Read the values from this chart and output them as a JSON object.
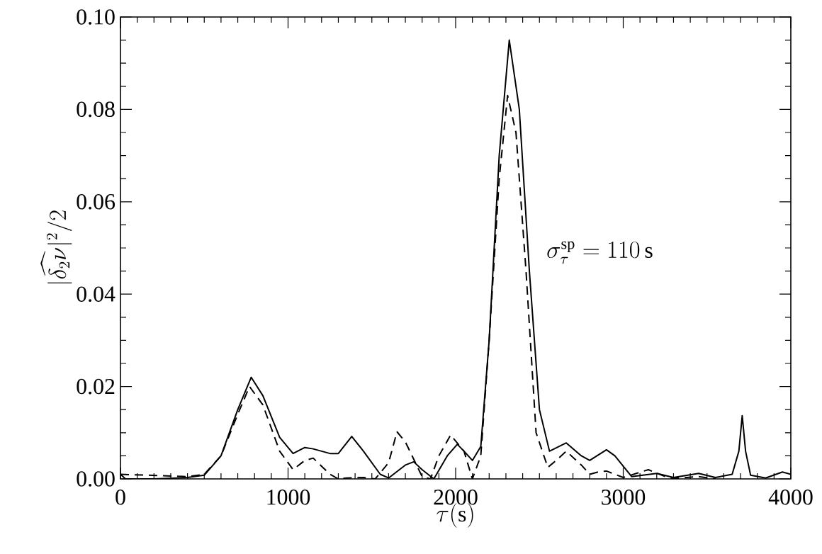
{
  "chart_data": {
    "type": "line",
    "xlabel": "\\tau(\\mathrm{s})",
    "ylabel": "|\\widehat{\\delta_2\\nu}|^2/2",
    "xlim": [
      0,
      4000
    ],
    "ylim": [
      0,
      0.1
    ],
    "xticks": [
      0,
      1000,
      2000,
      3000,
      4000
    ],
    "yticks": [
      {
        "value": 0,
        "label": "0.00"
      },
      {
        "value": 0.02,
        "label": "0.02"
      },
      {
        "value": 0.04,
        "label": "0.04"
      },
      {
        "value": 0.06,
        "label": "0.06"
      },
      {
        "value": 0.08,
        "label": "0.08"
      },
      {
        "value": 0.1,
        "label": "0.10"
      }
    ],
    "series": [
      {
        "color": "#000000",
        "line_style": "solid",
        "x": [
          0,
          30,
          200,
          400,
          500,
          600,
          700,
          780,
          850,
          950,
          1030,
          1100,
          1150,
          1250,
          1300,
          1380,
          1450,
          1550,
          1600,
          1700,
          1750,
          1800,
          1870,
          1950,
          2010,
          2050,
          2100,
          2150,
          2200,
          2260,
          2320,
          2380,
          2440,
          2500,
          2560,
          2660,
          2750,
          2800,
          2900,
          2950,
          3050,
          3200,
          3300,
          3450,
          3550,
          3650,
          3690,
          3710,
          3730,
          3760,
          3850,
          3950,
          4000
        ],
        "values": [
          0.001,
          0.0,
          0.0,
          0.0003,
          0.0008,
          0.005,
          0.015,
          0.022,
          0.018,
          0.009,
          0.0055,
          0.0068,
          0.0065,
          0.0055,
          0.0055,
          0.0092,
          0.006,
          0.001,
          0.0002,
          0.003,
          0.0037,
          0.002,
          0.0,
          0.005,
          0.0075,
          0.006,
          0.004,
          0.007,
          0.03,
          0.07,
          0.095,
          0.08,
          0.045,
          0.015,
          0.006,
          0.0078,
          0.005,
          0.004,
          0.0063,
          0.005,
          0.0005,
          0.0012,
          0.0003,
          0.0012,
          0.0003,
          0.001,
          0.006,
          0.0137,
          0.006,
          0.0008,
          0.0002,
          0.0015,
          0.001
        ]
      },
      {
        "color": "#000000",
        "line_style": "dashed",
        "x": [
          0,
          400,
          500,
          600,
          700,
          770,
          850,
          950,
          1030,
          1100,
          1150,
          1250,
          1300,
          1350,
          1450,
          1520,
          1600,
          1650,
          1700,
          1800,
          1850,
          1900,
          1970,
          2050,
          2100,
          2150,
          2200,
          2260,
          2310,
          2360,
          2420,
          2480,
          2550,
          2600,
          2660,
          2750,
          2800,
          2850,
          2900,
          3000,
          3150,
          3250,
          3300,
          3450,
          3550
        ],
        "values": [
          0.001,
          0.0005,
          0.001,
          0.005,
          0.014,
          0.02,
          0.016,
          0.006,
          0.002,
          0.004,
          0.0045,
          0.001,
          0.0,
          0.0002,
          0.0003,
          0.0,
          0.0035,
          0.0102,
          0.008,
          0.0005,
          0.0,
          0.005,
          0.0095,
          0.006,
          0.0,
          0.005,
          0.03,
          0.065,
          0.083,
          0.075,
          0.045,
          0.01,
          0.0025,
          0.004,
          0.006,
          0.003,
          0.001,
          0.0015,
          0.0017,
          0.0003,
          0.002,
          0.0005,
          0.0001,
          0.0005,
          0.0
        ]
      }
    ],
    "annotations": [
      "\\sigma_\\tau^{\\mathrm{sp}}=110\\,\\mathrm{s}"
    ]
  }
}
